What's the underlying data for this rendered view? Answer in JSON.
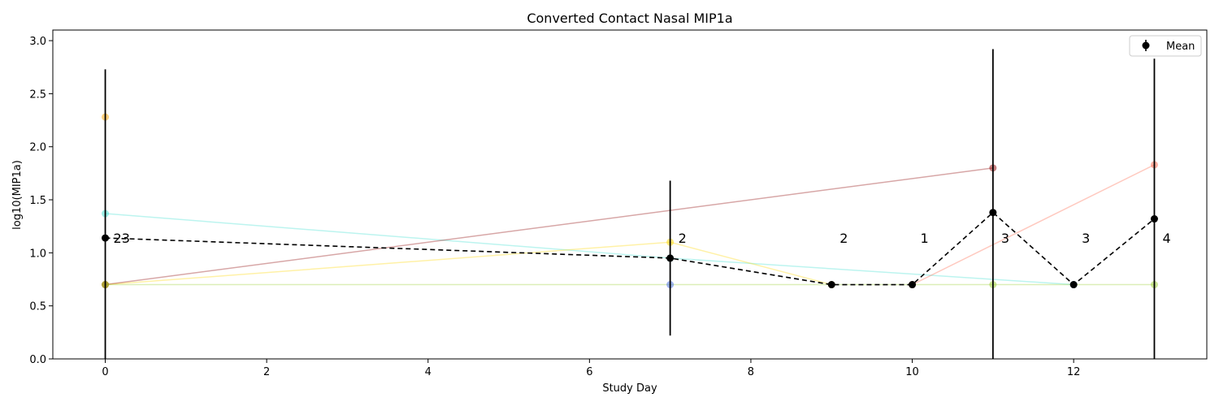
{
  "chart_data": {
    "type": "line",
    "title": "Converted Contact Nasal MIP1a",
    "xlabel": "Study Day",
    "ylabel": "log10(MIP1a)",
    "xlim": [
      -0.65,
      13.65
    ],
    "ylim": [
      0.0,
      3.1
    ],
    "xticks": [
      0,
      2,
      4,
      6,
      8,
      10,
      12
    ],
    "yticks": [
      0.0,
      0.5,
      1.0,
      1.5,
      2.0,
      2.5,
      3.0
    ],
    "xtick_labels": [
      "0",
      "2",
      "4",
      "6",
      "8",
      "10",
      "12"
    ],
    "ytick_labels": [
      "0.0",
      "0.5",
      "1.0",
      "1.5",
      "2.0",
      "2.5",
      "3.0"
    ],
    "legend": {
      "label": "Mean",
      "position": "top-right"
    },
    "mean_series": {
      "name": "Mean",
      "color": "#000000",
      "x": [
        0,
        7,
        9,
        10,
        11,
        12,
        13
      ],
      "y": [
        1.14,
        0.95,
        0.7,
        0.7,
        1.38,
        0.7,
        1.32
      ],
      "err_low": [
        0.0,
        0.22,
        0.7,
        0.7,
        0.0,
        0.7,
        0.0
      ],
      "err_high": [
        2.73,
        1.68,
        0.7,
        0.7,
        2.92,
        0.7,
        2.83
      ]
    },
    "counts": [
      {
        "x": 0,
        "label": "23"
      },
      {
        "x": 7,
        "label": "2"
      },
      {
        "x": 9,
        "label": "2"
      },
      {
        "x": 10,
        "label": "1"
      },
      {
        "x": 11,
        "label": "3"
      },
      {
        "x": 12,
        "label": "3"
      },
      {
        "x": 13,
        "label": "4"
      }
    ],
    "count_label_y": 1.14,
    "subjects": [
      {
        "color": "#40e0d0",
        "x": [
          0,
          7,
          12
        ],
        "y": [
          1.37,
          0.95,
          0.7
        ]
      },
      {
        "color": "#ffd700",
        "x": [
          0,
          7,
          9
        ],
        "y": [
          0.7,
          1.1,
          0.7
        ]
      },
      {
        "color": "#8b0000",
        "x": [
          0,
          11
        ],
        "y": [
          0.7,
          1.8
        ]
      },
      {
        "color": "#ff6347",
        "x": [
          10,
          13
        ],
        "y": [
          0.7,
          1.83
        ]
      },
      {
        "color": "#9acd32",
        "x": [
          0,
          11,
          13
        ],
        "y": [
          0.7,
          0.7,
          0.7
        ]
      },
      {
        "color": "#4169e1",
        "x": [
          7
        ],
        "y": [
          0.7
        ]
      },
      {
        "color": "#ffa500",
        "x": [
          0
        ],
        "y": [
          2.28
        ]
      }
    ]
  }
}
